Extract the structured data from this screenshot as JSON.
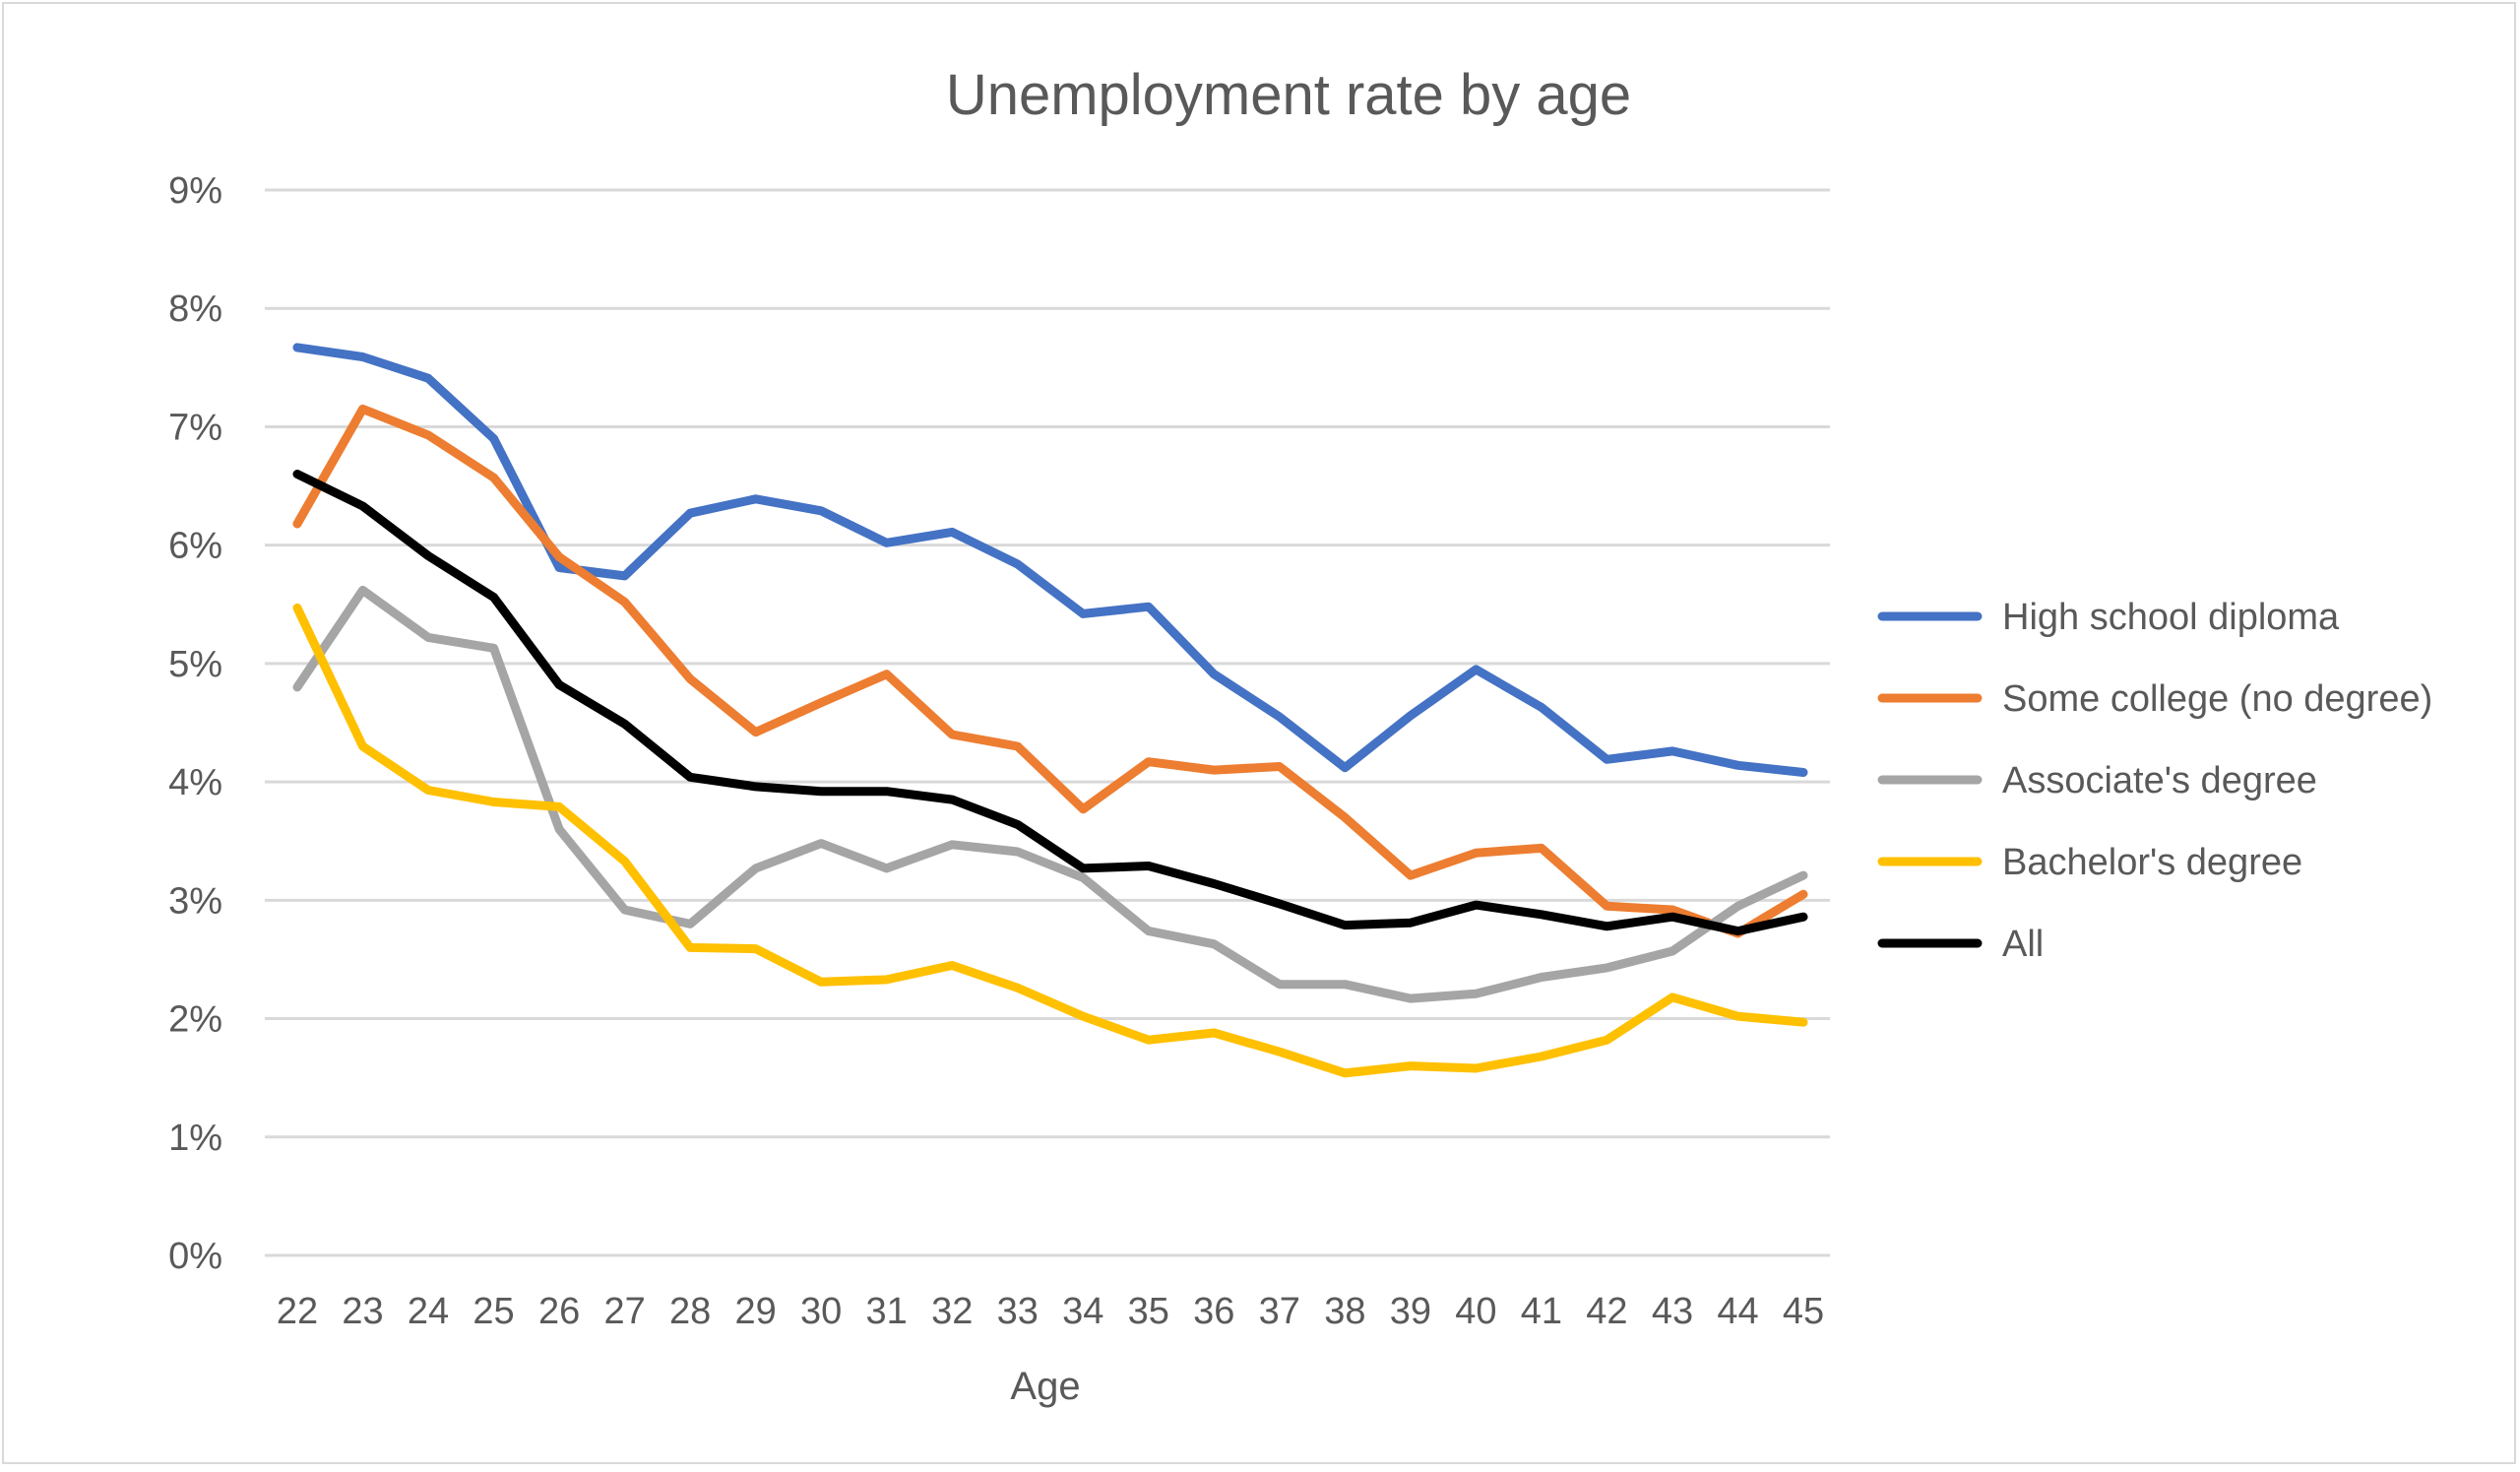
{
  "chart_data": {
    "type": "line",
    "title": "Unemployment rate by age",
    "xlabel": "Age",
    "ylabel": "",
    "categories": [
      "22",
      "23",
      "24",
      "25",
      "26",
      "27",
      "28",
      "29",
      "30",
      "31",
      "32",
      "33",
      "34",
      "35",
      "36",
      "37",
      "38",
      "39",
      "40",
      "41",
      "42",
      "43",
      "44",
      "45"
    ],
    "y_ticks": [
      "0%",
      "1%",
      "2%",
      "3%",
      "4%",
      "5%",
      "6%",
      "7%",
      "8%",
      "9%"
    ],
    "ylim": [
      0,
      9
    ],
    "grid": true,
    "legend_position": "right",
    "series": [
      {
        "name": "High school diploma",
        "color": "#4472c4",
        "values": [
          7.67,
          7.59,
          7.41,
          6.9,
          5.81,
          5.74,
          6.27,
          6.39,
          6.29,
          6.02,
          6.11,
          5.84,
          5.42,
          5.48,
          4.91,
          4.55,
          4.12,
          4.56,
          4.95,
          4.63,
          4.19,
          4.26,
          4.14,
          4.08
        ]
      },
      {
        "name": "Some college (no degree)",
        "color": "#ed7d31",
        "values": [
          6.18,
          7.15,
          6.93,
          6.57,
          5.9,
          5.52,
          4.87,
          4.42,
          4.67,
          4.91,
          4.4,
          4.3,
          3.77,
          4.17,
          4.1,
          4.13,
          3.7,
          3.21,
          3.4,
          3.44,
          2.95,
          2.92,
          2.72,
          3.05
        ]
      },
      {
        "name": "Associate's degree",
        "color": "#a5a5a5",
        "values": [
          4.8,
          5.62,
          5.22,
          5.13,
          3.6,
          2.92,
          2.8,
          3.27,
          3.48,
          3.27,
          3.47,
          3.41,
          3.19,
          2.74,
          2.63,
          2.29,
          2.29,
          2.17,
          2.21,
          2.35,
          2.43,
          2.57,
          2.95,
          3.21
        ]
      },
      {
        "name": "Bachelor's degree",
        "color": "#ffc000",
        "values": [
          5.47,
          4.3,
          3.93,
          3.83,
          3.79,
          3.33,
          2.6,
          2.59,
          2.31,
          2.33,
          2.45,
          2.26,
          2.02,
          1.82,
          1.88,
          1.72,
          1.54,
          1.6,
          1.58,
          1.68,
          1.82,
          2.18,
          2.02,
          1.97
        ]
      },
      {
        "name": "All",
        "color": "#000000",
        "values": [
          6.6,
          6.33,
          5.91,
          5.56,
          4.82,
          4.49,
          4.04,
          3.96,
          3.92,
          3.92,
          3.85,
          3.64,
          3.27,
          3.29,
          3.14,
          2.97,
          2.79,
          2.81,
          2.96,
          2.88,
          2.78,
          2.86,
          2.74,
          2.86
        ]
      }
    ]
  }
}
